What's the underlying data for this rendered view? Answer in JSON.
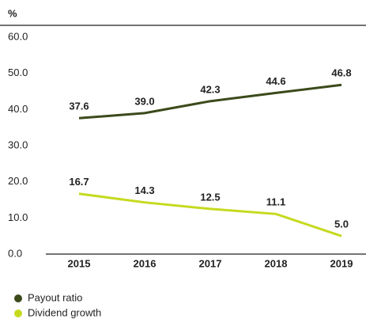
{
  "chart_data": {
    "type": "line",
    "y_unit_label": "%",
    "categories": [
      "2015",
      "2016",
      "2017",
      "2018",
      "2019"
    ],
    "series": [
      {
        "name": "Payout ratio",
        "color": "#3b4a1a",
        "values": [
          37.6,
          39.0,
          42.3,
          44.6,
          46.8
        ],
        "value_labels": [
          "37.6",
          "39.0",
          "42.3",
          "44.6",
          "46.8"
        ]
      },
      {
        "name": "Dividend growth",
        "color": "#c5da1f",
        "values": [
          16.7,
          14.3,
          12.5,
          11.1,
          5.0
        ],
        "value_labels": [
          "16.7",
          "14.3",
          "12.5",
          "11.1",
          "5.0"
        ]
      }
    ],
    "ylim": [
      0,
      60
    ],
    "yticks": [
      {
        "value": 0,
        "label": "0.0"
      },
      {
        "value": 10,
        "label": "10.0"
      },
      {
        "value": 20,
        "label": "20.0"
      },
      {
        "value": 30,
        "label": "30.0"
      },
      {
        "value": 40,
        "label": "40.0"
      },
      {
        "value": 50,
        "label": "50.0"
      },
      {
        "value": 60,
        "label": "60.0"
      }
    ],
    "grid": false,
    "legend_position": "bottom-left"
  }
}
